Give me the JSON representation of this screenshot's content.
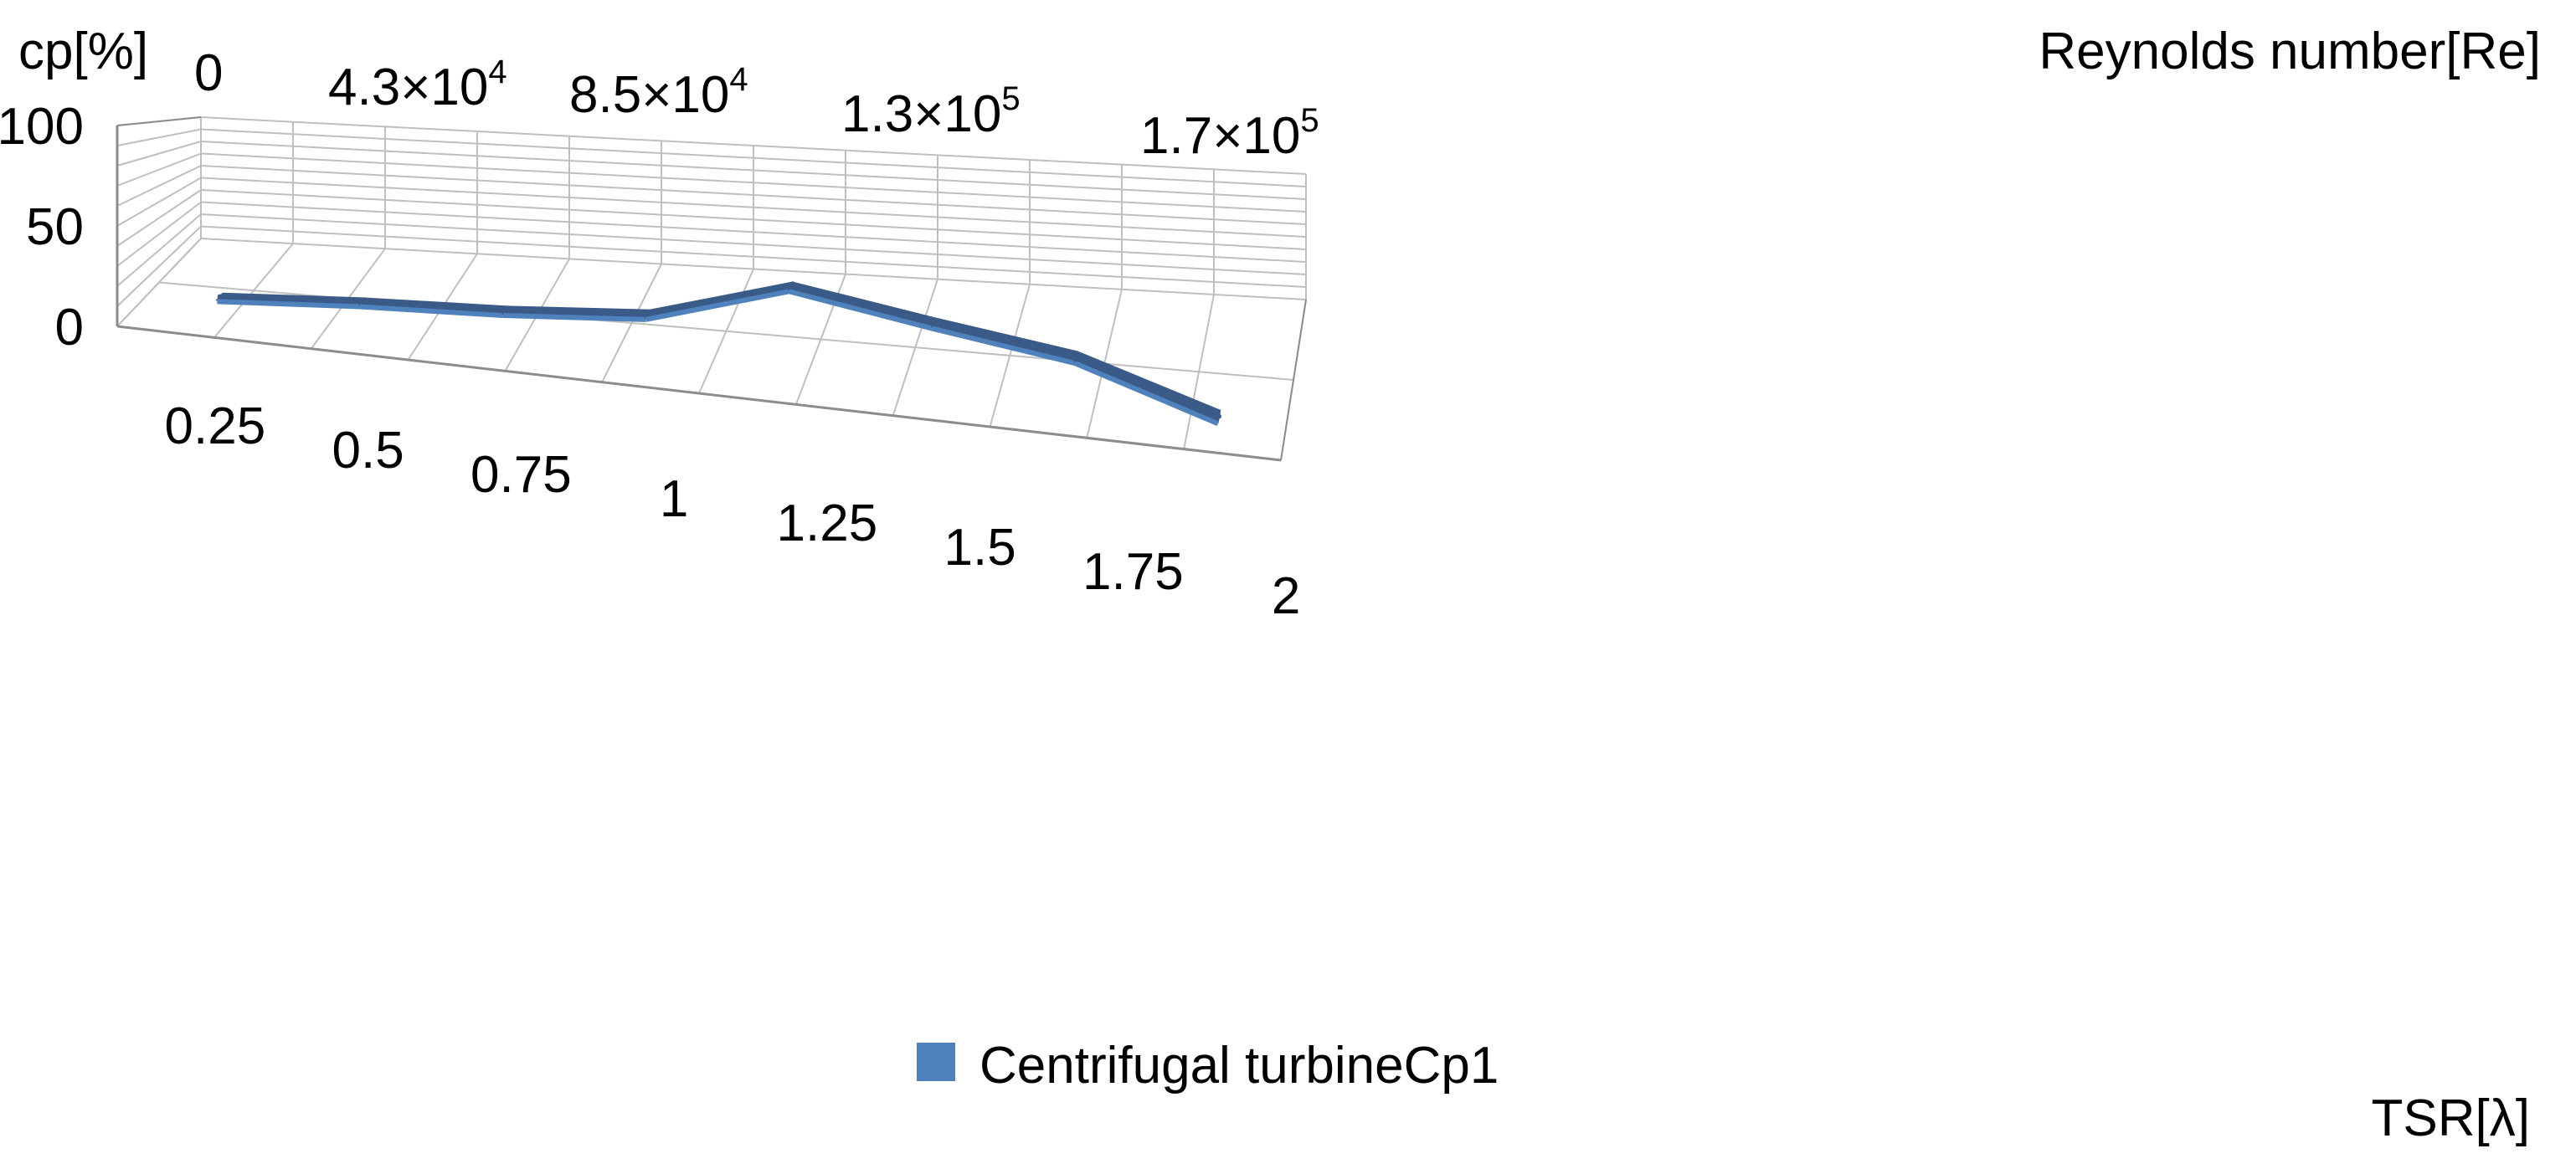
{
  "chart_data": {
    "type": "line",
    "style": "3d",
    "ylabel": "cp[%]",
    "xlabel": "TSR[λ]",
    "x2label": "Reynolds number[Re]",
    "ylim": [
      0,
      100
    ],
    "y_ticks": [
      "0",
      "50",
      "100"
    ],
    "categories": [
      "0.25",
      "0.5",
      "0.75",
      "1",
      "1.25",
      "1.5",
      "1.75",
      "2"
    ],
    "re_ticks": [
      {
        "base": "0",
        "exp": ""
      },
      {
        "base": "4.3×10",
        "exp": "4"
      },
      {
        "base": "8.5×10",
        "exp": "4"
      },
      {
        "base": "1.3×10",
        "exp": "5"
      },
      {
        "base": "1.7×10",
        "exp": "5"
      }
    ],
    "series": [
      {
        "name": "Centrifugal turbineCp1",
        "values": [
          2,
          7,
          10,
          16,
          42,
          28,
          15,
          -15
        ]
      }
    ],
    "legend_position": "bottom",
    "grid": true,
    "colors": {
      "series_top": "#3a5a88",
      "series_front": "#4f81bd",
      "grid": "#bfbfbf",
      "axis": "#8c8c8c"
    }
  }
}
